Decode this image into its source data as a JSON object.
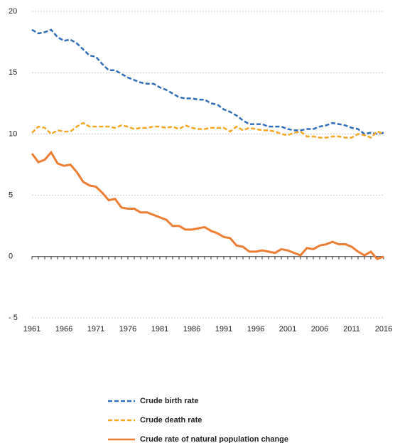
{
  "chart_data": {
    "type": "line",
    "x": [
      1961,
      1962,
      1963,
      1964,
      1965,
      1966,
      1967,
      1968,
      1969,
      1970,
      1971,
      1972,
      1973,
      1974,
      1975,
      1976,
      1977,
      1978,
      1979,
      1980,
      1981,
      1982,
      1983,
      1984,
      1985,
      1986,
      1987,
      1988,
      1989,
      1990,
      1991,
      1992,
      1993,
      1994,
      1995,
      1996,
      1997,
      1998,
      1999,
      2000,
      2001,
      2002,
      2003,
      2004,
      2005,
      2006,
      2007,
      2008,
      2009,
      2010,
      2011,
      2012,
      2013,
      2014,
      2015,
      2016
    ],
    "series": [
      {
        "name": "Crude birth rate",
        "color": "#2f6eba",
        "line_style": "dashed",
        "values": [
          18.5,
          18.2,
          18.3,
          18.5,
          17.9,
          17.6,
          17.7,
          17.4,
          16.9,
          16.4,
          16.3,
          15.7,
          15.2,
          15.2,
          14.9,
          14.6,
          14.4,
          14.2,
          14.1,
          14.1,
          13.8,
          13.6,
          13.3,
          13.0,
          12.9,
          12.9,
          12.8,
          12.8,
          12.5,
          12.4,
          12.0,
          11.8,
          11.5,
          11.1,
          10.8,
          10.8,
          10.8,
          10.6,
          10.6,
          10.6,
          10.4,
          10.3,
          10.3,
          10.4,
          10.4,
          10.6,
          10.7,
          10.9,
          10.8,
          10.7,
          10.5,
          10.4,
          10.0,
          10.1,
          10.0,
          10.1
        ]
      },
      {
        "name": "Crude death rate",
        "color": "#f5a623",
        "line_style": "dashed",
        "values": [
          10.1,
          10.6,
          10.5,
          10.0,
          10.3,
          10.2,
          10.2,
          10.6,
          10.9,
          10.6,
          10.6,
          10.6,
          10.6,
          10.5,
          10.7,
          10.6,
          10.4,
          10.5,
          10.5,
          10.6,
          10.6,
          10.5,
          10.6,
          10.4,
          10.7,
          10.5,
          10.4,
          10.4,
          10.5,
          10.5,
          10.5,
          10.2,
          10.6,
          10.3,
          10.5,
          10.4,
          10.3,
          10.3,
          10.2,
          10.0,
          9.9,
          10.1,
          10.2,
          9.8,
          9.8,
          9.7,
          9.7,
          9.8,
          9.8,
          9.7,
          9.7,
          10.0,
          9.9,
          9.7,
          10.2,
          10.0
        ]
      },
      {
        "name": "Crude rate of natural population change",
        "color": "#ed7d31",
        "line_style": "solid",
        "values": [
          8.4,
          7.7,
          7.9,
          8.5,
          7.6,
          7.4,
          7.5,
          6.9,
          6.1,
          5.8,
          5.7,
          5.2,
          4.6,
          4.7,
          4.0,
          3.9,
          3.9,
          3.6,
          3.6,
          3.4,
          3.2,
          3.0,
          2.5,
          2.5,
          2.2,
          2.2,
          2.3,
          2.4,
          2.1,
          1.9,
          1.6,
          1.5,
          0.9,
          0.8,
          0.4,
          0.4,
          0.5,
          0.4,
          0.3,
          0.6,
          0.5,
          0.3,
          0.1,
          0.7,
          0.6,
          0.9,
          1.0,
          1.2,
          1.0,
          1.0,
          0.8,
          0.4,
          0.1,
          0.4,
          -0.2,
          0.0
        ]
      }
    ],
    "xlim": [
      1961,
      2016
    ],
    "xticks": [
      1961,
      1966,
      1971,
      1976,
      1981,
      1986,
      1991,
      1996,
      2001,
      2006,
      2011,
      2016
    ],
    "ylim": [
      -5,
      20
    ],
    "yticks": [
      {
        "value": -5,
        "label": "- 5"
      },
      0,
      5,
      10,
      15,
      20
    ],
    "grid": true,
    "legend": "bottom"
  }
}
